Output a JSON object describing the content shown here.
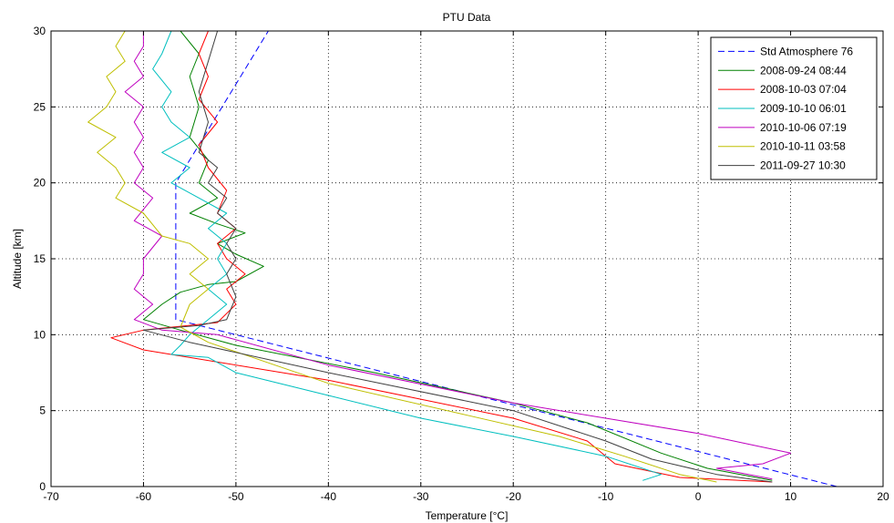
{
  "chart_data": {
    "type": "line",
    "title": "PTU Data",
    "xlabel": "Temperature [°C]",
    "ylabel": "Altitude [km]",
    "xlim": [
      -70,
      20
    ],
    "ylim": [
      0,
      30
    ],
    "xticks": [
      -70,
      -60,
      -50,
      -40,
      -30,
      -20,
      -10,
      0,
      10,
      20
    ],
    "yticks": [
      0,
      5,
      10,
      15,
      20,
      25,
      30
    ],
    "grid": true,
    "legend_position": "top-right",
    "series": [
      {
        "name": "Std Atmosphere 76",
        "color": "#0000ff",
        "dash": true,
        "points": [
          [
            15,
            0
          ],
          [
            -56.5,
            11
          ],
          [
            -56.5,
            20
          ],
          [
            -53.5,
            23
          ],
          [
            -44.5,
            32
          ]
        ]
      },
      {
        "name": "2008-09-24 08:44",
        "color": "#008000",
        "points": [
          [
            8,
            0.4
          ],
          [
            1,
            1.2
          ],
          [
            -4,
            2.2
          ],
          [
            -12,
            4.2
          ],
          [
            -20,
            5.5
          ],
          [
            -35,
            7.5
          ],
          [
            -50,
            9.3
          ],
          [
            -56,
            10.3
          ],
          [
            -60,
            11
          ],
          [
            -58,
            12
          ],
          [
            -56,
            12.8
          ],
          [
            -53,
            13.3
          ],
          [
            -50,
            13.5
          ],
          [
            -47,
            14.5
          ],
          [
            -50,
            15.3
          ],
          [
            -52,
            16
          ],
          [
            -49,
            16.7
          ],
          [
            -52,
            17.3
          ],
          [
            -55,
            18
          ],
          [
            -52,
            19
          ],
          [
            -54,
            20
          ],
          [
            -53,
            21.5
          ],
          [
            -55,
            23
          ],
          [
            -54,
            25
          ],
          [
            -55,
            27
          ],
          [
            -54,
            28.5
          ],
          [
            -56,
            30
          ]
        ]
      },
      {
        "name": "2008-10-03 07:04",
        "color": "#ff0000",
        "points": [
          [
            8,
            0.3
          ],
          [
            -2,
            0.6
          ],
          [
            -9,
            1.5
          ],
          [
            -12,
            3
          ],
          [
            -20,
            4.5
          ],
          [
            -40,
            7
          ],
          [
            -60,
            9
          ],
          [
            -63.5,
            9.8
          ],
          [
            -60,
            10.3
          ],
          [
            -52,
            10.8
          ],
          [
            -50,
            12
          ],
          [
            -51,
            13
          ],
          [
            -49,
            14
          ],
          [
            -51,
            15
          ],
          [
            -52,
            16
          ],
          [
            -50,
            17
          ],
          [
            -52,
            18
          ],
          [
            -51,
            19.5
          ],
          [
            -53,
            21
          ],
          [
            -54,
            22.5
          ],
          [
            -52,
            24
          ],
          [
            -54,
            25.5
          ],
          [
            -53,
            27
          ],
          [
            -54,
            28.5
          ],
          [
            -53,
            30
          ]
        ]
      },
      {
        "name": "2009-10-10 06:01",
        "color": "#00bfbf",
        "points": [
          [
            -6,
            0.4
          ],
          [
            -4,
            0.8
          ],
          [
            -10,
            2
          ],
          [
            -20,
            3.3
          ],
          [
            -30,
            4.5
          ],
          [
            -40,
            6
          ],
          [
            -50,
            7.5
          ],
          [
            -53,
            8.5
          ],
          [
            -57,
            8.7
          ],
          [
            -56,
            9.3
          ],
          [
            -55,
            10
          ],
          [
            -53,
            11
          ],
          [
            -51,
            12
          ],
          [
            -53,
            13
          ],
          [
            -51,
            14
          ],
          [
            -52,
            15
          ],
          [
            -51,
            16
          ],
          [
            -53,
            17
          ],
          [
            -51,
            18
          ],
          [
            -54,
            19
          ],
          [
            -57,
            20
          ],
          [
            -55,
            21
          ],
          [
            -58,
            22
          ],
          [
            -55,
            23
          ],
          [
            -57,
            24
          ],
          [
            -58,
            25
          ],
          [
            -57,
            26
          ],
          [
            -59,
            27.5
          ],
          [
            -58,
            28.5
          ],
          [
            -57,
            30
          ]
        ]
      },
      {
        "name": "2010-10-06 07:19",
        "color": "#bf00bf",
        "points": [
          [
            8,
            0.5
          ],
          [
            2,
            1.2
          ],
          [
            7,
            1.5
          ],
          [
            10,
            2.2
          ],
          [
            0,
            3.5
          ],
          [
            -20,
            5.5
          ],
          [
            -40,
            8
          ],
          [
            -52,
            10
          ],
          [
            -58,
            10.3
          ],
          [
            -61,
            11
          ],
          [
            -59,
            12
          ],
          [
            -61,
            13
          ],
          [
            -60,
            14
          ],
          [
            -60,
            15
          ],
          [
            -58,
            16.5
          ],
          [
            -61,
            17.5
          ],
          [
            -59,
            19
          ],
          [
            -61,
            20
          ],
          [
            -60,
            21
          ],
          [
            -61,
            22
          ],
          [
            -60,
            23
          ],
          [
            -61,
            24
          ],
          [
            -60,
            25
          ],
          [
            -62,
            26
          ],
          [
            -60,
            27
          ],
          [
            -61,
            28
          ],
          [
            -60,
            29
          ],
          [
            -60,
            30
          ]
        ]
      },
      {
        "name": "2010-10-11 03:58",
        "color": "#bfbf00",
        "points": [
          [
            2,
            0.3
          ],
          [
            -2,
            0.8
          ],
          [
            -8,
            2
          ],
          [
            -15,
            3.3
          ],
          [
            -25,
            4.7
          ],
          [
            -40,
            6.8
          ],
          [
            -53,
            9.5
          ],
          [
            -56,
            10.5
          ],
          [
            -55,
            12
          ],
          [
            -53,
            13
          ],
          [
            -55,
            14
          ],
          [
            -53,
            15
          ],
          [
            -55,
            16
          ],
          [
            -58,
            16.5
          ],
          [
            -60,
            18
          ],
          [
            -63,
            19
          ],
          [
            -62,
            20
          ],
          [
            -63,
            21
          ],
          [
            -65,
            22
          ],
          [
            -63,
            23
          ],
          [
            -66,
            24
          ],
          [
            -64,
            25
          ],
          [
            -63,
            26
          ],
          [
            -64,
            27
          ],
          [
            -62,
            28
          ],
          [
            -63,
            29
          ],
          [
            -62,
            30
          ]
        ]
      },
      {
        "name": "2011-09-27 10:30",
        "color": "#404040",
        "points": [
          [
            8,
            0.3
          ],
          [
            2,
            0.8
          ],
          [
            -5,
            1.8
          ],
          [
            -10,
            3
          ],
          [
            -20,
            5
          ],
          [
            -40,
            7.5
          ],
          [
            -55,
            9.5
          ],
          [
            -60,
            10.3
          ],
          [
            -54,
            10.6
          ],
          [
            -51,
            11
          ],
          [
            -50,
            12.5
          ],
          [
            -51,
            14
          ],
          [
            -50,
            15
          ],
          [
            -51,
            16
          ],
          [
            -50,
            17
          ],
          [
            -52,
            18
          ],
          [
            -51,
            19
          ],
          [
            -53,
            20
          ],
          [
            -52,
            21
          ],
          [
            -54,
            22
          ],
          [
            -53,
            24
          ],
          [
            -54,
            26
          ],
          [
            -53,
            28
          ],
          [
            -52,
            30
          ]
        ]
      }
    ]
  }
}
